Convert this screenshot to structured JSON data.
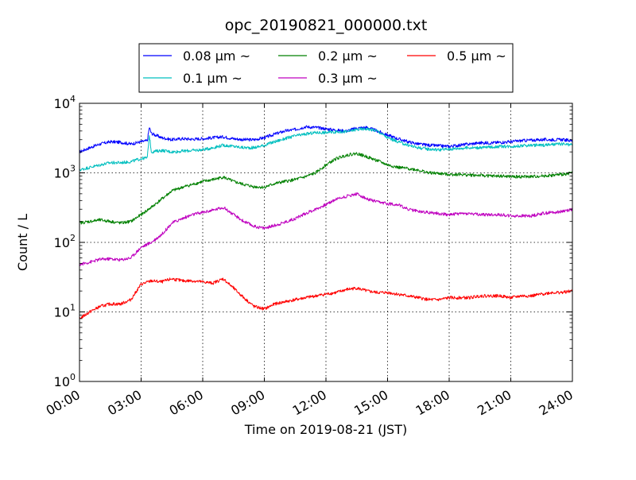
{
  "chart_data": {
    "type": "line",
    "title": "opc_20190821_000000.txt",
    "xlabel": "Time on 2019-08-21 (JST)",
    "ylabel": "Count / L",
    "x_unit": "hour",
    "x_range": [
      0,
      24
    ],
    "x_ticks": [
      {
        "value": 0,
        "label": "00:00"
      },
      {
        "value": 3,
        "label": "03:00"
      },
      {
        "value": 6,
        "label": "06:00"
      },
      {
        "value": 9,
        "label": "09:00"
      },
      {
        "value": 12,
        "label": "12:00"
      },
      {
        "value": 15,
        "label": "15:00"
      },
      {
        "value": 18,
        "label": "18:00"
      },
      {
        "value": 21,
        "label": "21:00"
      },
      {
        "value": 24,
        "label": "24:00"
      }
    ],
    "y_scale": "log",
    "ylim": [
      1,
      10000
    ],
    "y_ticks": [
      {
        "value": 1,
        "base": "10",
        "exp": "0"
      },
      {
        "value": 10,
        "base": "10",
        "exp": "1"
      },
      {
        "value": 100,
        "base": "10",
        "exp": "2"
      },
      {
        "value": 1000,
        "base": "10",
        "exp": "3"
      },
      {
        "value": 10000,
        "base": "10",
        "exp": "4"
      }
    ],
    "grid": true,
    "legend_position": "top-center",
    "series": [
      {
        "name": "0.08 μm ~",
        "color": "#0000ff",
        "x": [
          0,
          0.5,
          1,
          1.5,
          2,
          2.5,
          3,
          3.3,
          3.4,
          3.5,
          4,
          4.5,
          5,
          5.5,
          6,
          6.5,
          7,
          7.5,
          8,
          8.5,
          9,
          9.5,
          10,
          10.5,
          11,
          11.5,
          12,
          12.5,
          13,
          13.5,
          14,
          14.5,
          15,
          15.5,
          16,
          16.5,
          17,
          17.5,
          18,
          18.5,
          19,
          19.5,
          20,
          20.5,
          21,
          21.5,
          22,
          22.5,
          23,
          23.5,
          24
        ],
        "y": [
          2000,
          2300,
          2600,
          2800,
          2750,
          2600,
          2800,
          2900,
          4500,
          3700,
          3200,
          3000,
          3100,
          3050,
          3100,
          3200,
          3300,
          3100,
          3000,
          3000,
          3200,
          3600,
          4000,
          4200,
          4600,
          4500,
          4300,
          4100,
          4000,
          4400,
          4500,
          4000,
          3500,
          3100,
          2800,
          2600,
          2500,
          2450,
          2400,
          2500,
          2600,
          2700,
          2700,
          2750,
          2800,
          2900,
          2950,
          3000,
          3000,
          3000,
          2900
        ]
      },
      {
        "name": "0.1 μm ~",
        "color": "#00bfbf",
        "x": [
          0,
          0.5,
          1,
          1.5,
          2,
          2.5,
          3,
          3.3,
          3.4,
          3.5,
          4,
          4.5,
          5,
          5.5,
          6,
          6.5,
          7,
          7.5,
          8,
          8.5,
          9,
          9.5,
          10,
          10.5,
          11,
          11.5,
          12,
          12.5,
          13,
          13.5,
          14,
          14.5,
          15,
          15.5,
          16,
          16.5,
          17,
          17.5,
          18,
          18.5,
          19,
          19.5,
          20,
          20.5,
          21,
          21.5,
          22,
          22.5,
          23,
          23.5,
          24
        ],
        "y": [
          1100,
          1200,
          1300,
          1400,
          1400,
          1450,
          1600,
          1650,
          3500,
          2000,
          2100,
          2000,
          2050,
          2100,
          2150,
          2300,
          2500,
          2400,
          2300,
          2300,
          2500,
          2800,
          3100,
          3400,
          3600,
          3800,
          3800,
          3900,
          3900,
          4200,
          4300,
          4000,
          3200,
          2800,
          2500,
          2300,
          2200,
          2150,
          2200,
          2250,
          2300,
          2300,
          2350,
          2400,
          2400,
          2450,
          2500,
          2500,
          2550,
          2600,
          2500
        ]
      },
      {
        "name": "0.2 μm ~",
        "color": "#008000",
        "x": [
          0,
          0.5,
          1,
          1.5,
          2,
          2.5,
          3,
          3.5,
          4,
          4.5,
          5,
          5.5,
          6,
          6.5,
          7,
          7.5,
          8,
          8.5,
          9,
          9.5,
          10,
          10.5,
          11,
          11.5,
          12,
          12.5,
          13,
          13.5,
          14,
          14.5,
          15,
          15.5,
          16,
          16.5,
          17,
          17.5,
          18,
          18.5,
          19,
          19.5,
          20,
          20.5,
          21,
          21.5,
          22,
          22.5,
          23,
          23.5,
          24
        ],
        "y": [
          190,
          200,
          210,
          200,
          190,
          200,
          250,
          320,
          420,
          550,
          620,
          680,
          750,
          800,
          870,
          750,
          680,
          630,
          620,
          700,
          750,
          800,
          880,
          1000,
          1300,
          1600,
          1800,
          1900,
          1700,
          1500,
          1300,
          1200,
          1150,
          1100,
          1000,
          980,
          950,
          950,
          930,
          920,
          900,
          900,
          880,
          880,
          880,
          900,
          920,
          950,
          1000
        ]
      },
      {
        "name": "0.3 μm ~",
        "color": "#bf00bf",
        "x": [
          0,
          0.5,
          1,
          1.5,
          2,
          2.5,
          3,
          3.5,
          4,
          4.5,
          5,
          5.5,
          6,
          6.5,
          7,
          7.5,
          8,
          8.5,
          9,
          9.5,
          10,
          10.5,
          11,
          11.5,
          12,
          12.5,
          13,
          13.5,
          14,
          14.5,
          15,
          15.5,
          16,
          16.5,
          17,
          17.5,
          18,
          18.5,
          19,
          19.5,
          20,
          20.5,
          21,
          21.5,
          22,
          22.5,
          23,
          23.5,
          24
        ],
        "y": [
          48,
          52,
          57,
          58,
          56,
          60,
          85,
          100,
          130,
          190,
          220,
          250,
          270,
          290,
          320,
          250,
          200,
          170,
          160,
          175,
          195,
          220,
          260,
          300,
          350,
          420,
          460,
          500,
          420,
          380,
          360,
          350,
          300,
          280,
          270,
          260,
          250,
          260,
          260,
          250,
          250,
          250,
          240,
          240,
          240,
          260,
          270,
          280,
          300
        ]
      },
      {
        "name": "0.5 μm ~",
        "color": "#ff0000",
        "x": [
          0,
          0.5,
          1,
          1.5,
          2,
          2.5,
          3,
          3.5,
          4,
          4.5,
          5,
          5.5,
          6,
          6.5,
          7,
          7.5,
          8,
          8.5,
          9,
          9.5,
          10,
          10.5,
          11,
          11.5,
          12,
          12.5,
          13,
          13.5,
          14,
          14.5,
          15,
          15.5,
          16,
          16.5,
          17,
          17.5,
          18,
          18.5,
          19,
          19.5,
          20,
          20.5,
          21,
          21.5,
          22,
          22.5,
          23,
          23.5,
          24
        ],
        "y": [
          8,
          10,
          12,
          13,
          13,
          15,
          25,
          28,
          27,
          30,
          28,
          28,
          27,
          26,
          30,
          22,
          16,
          12,
          11,
          13,
          14,
          15,
          16,
          17,
          18,
          19,
          21,
          22,
          20,
          19,
          19,
          18,
          17,
          16,
          15,
          15,
          16,
          16,
          16,
          17,
          17,
          17,
          16,
          17,
          17,
          18,
          19,
          19,
          20
        ]
      }
    ]
  }
}
